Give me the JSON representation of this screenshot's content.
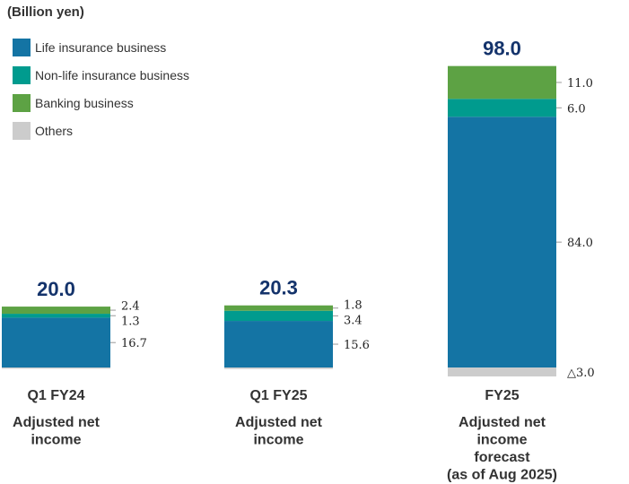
{
  "chart_data": {
    "type": "bar",
    "stacked": true,
    "unit_label": "(Billion yen)",
    "legend": [
      {
        "key": "life",
        "name": "Life insurance business",
        "color": "#1474a4"
      },
      {
        "key": "nonlife",
        "name": "Non-life insurance business",
        "color": "#009b8e"
      },
      {
        "key": "bank",
        "name": "Banking business",
        "color": "#5da244"
      },
      {
        "key": "others",
        "name": "Others",
        "color": "#cccccc"
      }
    ],
    "categories": [
      {
        "period": "Q1 FY24",
        "subtitle": [
          "Adjusted net",
          "income"
        ]
      },
      {
        "period": "Q1 FY25",
        "subtitle": [
          "Adjusted net",
          "income"
        ]
      },
      {
        "period": "FY25",
        "subtitle": [
          "Adjusted net",
          "income",
          "forecast",
          "(as of Aug 2025)"
        ]
      }
    ],
    "series": [
      {
        "key": "others",
        "name": "Others",
        "values": [
          -0.4,
          -0.5,
          -3.0
        ],
        "labels": [
          "",
          "",
          "△3.0"
        ]
      },
      {
        "key": "life",
        "name": "Life insurance business",
        "values": [
          16.7,
          15.6,
          84.0
        ],
        "labels": [
          "16.7",
          "15.6",
          "84.0"
        ]
      },
      {
        "key": "nonlife",
        "name": "Non-life insurance business",
        "values": [
          1.3,
          3.4,
          6.0
        ],
        "labels": [
          "1.3",
          "3.4",
          "6.0"
        ]
      },
      {
        "key": "bank",
        "name": "Banking business",
        "values": [
          2.4,
          1.8,
          11.0
        ],
        "labels": [
          "2.4",
          "1.8",
          "11.0"
        ]
      }
    ],
    "totals": [
      "20.0",
      "20.3",
      "98.0"
    ]
  }
}
